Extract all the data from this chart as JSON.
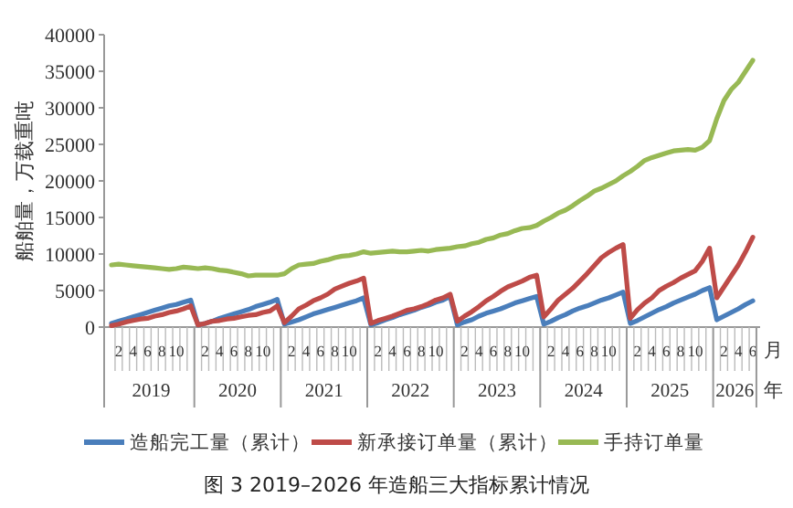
{
  "chart_data": {
    "type": "line",
    "title": "图 3 2019–2026 年造船三大指标累计情况",
    "ylabel": "船舶量，万载重吨",
    "xlabel": "月",
    "categories": [
      null,
      "2",
      null,
      "4",
      null,
      "6",
      null,
      "8",
      null,
      "10",
      null,
      null,
      null,
      "2",
      null,
      "4",
      null,
      "6",
      null,
      "8",
      null,
      "10",
      null,
      null,
      null,
      "2",
      null,
      "4",
      null,
      "6",
      null,
      "8",
      null,
      "10",
      null,
      null,
      null,
      "2",
      null,
      "4",
      null,
      "6",
      null,
      "8",
      null,
      "10",
      null,
      null,
      null,
      "2",
      null,
      "4",
      null,
      "6",
      null,
      "8",
      null,
      "10",
      null,
      null,
      null,
      "2",
      null,
      "4",
      null,
      "6",
      null,
      "8",
      null,
      "10",
      null,
      null,
      null,
      "2",
      null,
      "4",
      null,
      "6",
      null,
      "8",
      null,
      "10",
      null,
      null,
      null,
      "2",
      null,
      "4",
      null,
      "6"
    ],
    "annotations": [
      "2019",
      "2020",
      "2021",
      "2022",
      "2023",
      "2024",
      "2025",
      "2026",
      "年"
    ],
    "ylim": [
      0,
      40000
    ],
    "yticks": [
      0,
      5000,
      10000,
      15000,
      20000,
      25000,
      30000,
      35000,
      40000
    ],
    "grid": false,
    "legend": "bottom",
    "marker": "none",
    "line_style": "solid",
    "series": [
      {
        "name": "造船完工量（累计）",
        "color": "#4a7ebb",
        "values": [
          500,
          800,
          1100,
          1400,
          1700,
          2000,
          2300,
          2600,
          2900,
          3100,
          3400,
          3700,
          300,
          500,
          800,
          1200,
          1500,
          1800,
          2100,
          2400,
          2800,
          3100,
          3400,
          3800,
          400,
          700,
          1000,
          1400,
          1800,
          2100,
          2400,
          2700,
          3000,
          3300,
          3600,
          4000,
          300,
          600,
          1000,
          1300,
          1700,
          2000,
          2300,
          2700,
          3000,
          3400,
          3700,
          4200,
          300,
          700,
          1000,
          1500,
          1900,
          2200,
          2500,
          2900,
          3300,
          3600,
          3900,
          4200,
          400,
          800,
          1300,
          1700,
          2200,
          2600,
          2900,
          3300,
          3700,
          4000,
          4400,
          4800,
          500,
          900,
          1400,
          1900,
          2400,
          2800,
          3300,
          3700,
          4100,
          4500,
          5000,
          5400,
          1000,
          1500,
          2000,
          2500,
          3100,
          3600
        ]
      },
      {
        "name": "新承接订单量（累计）",
        "color": "#be4b48",
        "values": [
          200,
          400,
          700,
          900,
          1100,
          1200,
          1500,
          1700,
          2000,
          2200,
          2500,
          2900,
          300,
          500,
          800,
          900,
          1100,
          1200,
          1400,
          1600,
          1700,
          2000,
          2200,
          2900,
          600,
          1500,
          2500,
          3000,
          3600,
          4000,
          4500,
          5200,
          5600,
          6000,
          6300,
          6700,
          500,
          900,
          1200,
          1500,
          1900,
          2300,
          2500,
          2800,
          3200,
          3700,
          4000,
          4500,
          800,
          1500,
          2100,
          2800,
          3600,
          4200,
          4900,
          5500,
          5900,
          6300,
          6800,
          7100,
          1400,
          2500,
          3700,
          4500,
          5300,
          6300,
          7300,
          8400,
          9500,
          10200,
          10800,
          11300,
          1200,
          2400,
          3300,
          4000,
          5000,
          5600,
          6100,
          6700,
          7200,
          7700,
          9000,
          10800,
          4000,
          5500,
          7000,
          8500,
          10300,
          12300
        ]
      },
      {
        "name": "手持订单量",
        "color": "#98b954",
        "values": [
          8500,
          8600,
          8500,
          8400,
          8300,
          8200,
          8100,
          8000,
          7900,
          8000,
          8200,
          8100,
          8000,
          8100,
          8000,
          7800,
          7700,
          7500,
          7300,
          7000,
          7100,
          7100,
          7100,
          7100,
          7300,
          8000,
          8500,
          8600,
          8700,
          9000,
          9200,
          9500,
          9700,
          9800,
          10000,
          10300,
          10100,
          10200,
          10300,
          10400,
          10300,
          10300,
          10400,
          10500,
          10400,
          10600,
          10700,
          10800,
          11000,
          11100,
          11400,
          11600,
          12000,
          12200,
          12600,
          12800,
          13200,
          13500,
          13600,
          13900,
          14500,
          15000,
          15600,
          16000,
          16600,
          17300,
          17900,
          18600,
          19000,
          19500,
          20000,
          20700,
          21300,
          22000,
          22800,
          23200,
          23500,
          23800,
          24100,
          24200,
          24300,
          24200,
          24600,
          25500,
          28500,
          31000,
          32500,
          33500,
          35000,
          36500
        ]
      }
    ]
  }
}
